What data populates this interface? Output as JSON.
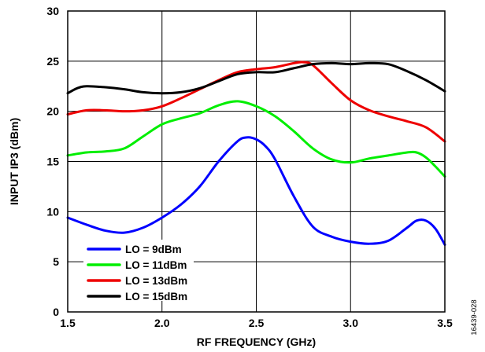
{
  "chart_data": {
    "type": "line",
    "xlabel": "RF FREQUENCY (GHz)",
    "ylabel": "INPUT IP3 (dBm)",
    "xlim": [
      1.5,
      3.5
    ],
    "ylim": [
      0,
      30
    ],
    "x_ticks": [
      "1.5",
      "2.0",
      "2.5",
      "3.0",
      "3.5"
    ],
    "y_ticks": [
      "0",
      "5",
      "10",
      "15",
      "20",
      "25",
      "30"
    ],
    "grid": true,
    "legend_position": "bottom-left",
    "figure_id": "16439-028",
    "series": [
      {
        "name": "LO = 9dBm",
        "color": "#0000ff",
        "x": [
          1.5,
          1.6,
          1.7,
          1.8,
          1.9,
          2.0,
          2.1,
          2.2,
          2.3,
          2.4,
          2.45,
          2.5,
          2.55,
          2.6,
          2.7,
          2.8,
          2.9,
          3.0,
          3.1,
          3.2,
          3.3,
          3.35,
          3.4,
          3.45,
          3.5
        ],
        "y": [
          9.4,
          8.7,
          8.1,
          7.9,
          8.4,
          9.4,
          10.7,
          12.5,
          15.0,
          17.0,
          17.4,
          17.2,
          16.5,
          15.2,
          11.5,
          8.5,
          7.5,
          7.0,
          6.8,
          7.1,
          8.4,
          9.1,
          9.1,
          8.3,
          6.7
        ]
      },
      {
        "name": "LO = 11dBm",
        "color": "#00ee00",
        "x": [
          1.5,
          1.6,
          1.7,
          1.8,
          1.9,
          2.0,
          2.1,
          2.2,
          2.3,
          2.4,
          2.5,
          2.6,
          2.7,
          2.8,
          2.9,
          3.0,
          3.1,
          3.2,
          3.3,
          3.35,
          3.4,
          3.45,
          3.5
        ],
        "y": [
          15.6,
          15.9,
          16.0,
          16.3,
          17.5,
          18.7,
          19.3,
          19.8,
          20.6,
          21.0,
          20.5,
          19.5,
          18.0,
          16.3,
          15.2,
          14.9,
          15.3,
          15.6,
          15.9,
          15.9,
          15.4,
          14.5,
          13.5
        ]
      },
      {
        "name": "LO = 13dBm",
        "color": "#ee0000",
        "x": [
          1.5,
          1.6,
          1.7,
          1.8,
          1.9,
          2.0,
          2.1,
          2.2,
          2.3,
          2.4,
          2.5,
          2.6,
          2.7,
          2.75,
          2.8,
          2.9,
          3.0,
          3.1,
          3.2,
          3.3,
          3.4,
          3.5
        ],
        "y": [
          19.7,
          20.1,
          20.1,
          20.0,
          20.1,
          20.5,
          21.3,
          22.2,
          23.1,
          23.9,
          24.2,
          24.4,
          24.8,
          24.9,
          24.6,
          22.8,
          21.1,
          20.1,
          19.5,
          19.0,
          18.4,
          17.0
        ]
      },
      {
        "name": "LO = 15dBm",
        "color": "#000000",
        "x": [
          1.5,
          1.55,
          1.6,
          1.7,
          1.8,
          1.9,
          2.0,
          2.1,
          2.2,
          2.3,
          2.4,
          2.5,
          2.6,
          2.7,
          2.8,
          2.9,
          3.0,
          3.1,
          3.2,
          3.3,
          3.4,
          3.5
        ],
        "y": [
          21.8,
          22.3,
          22.5,
          22.4,
          22.2,
          21.9,
          21.8,
          21.9,
          22.3,
          23.0,
          23.7,
          23.9,
          23.9,
          24.3,
          24.7,
          24.8,
          24.7,
          24.8,
          24.7,
          24.0,
          23.1,
          22.0
        ]
      }
    ]
  }
}
